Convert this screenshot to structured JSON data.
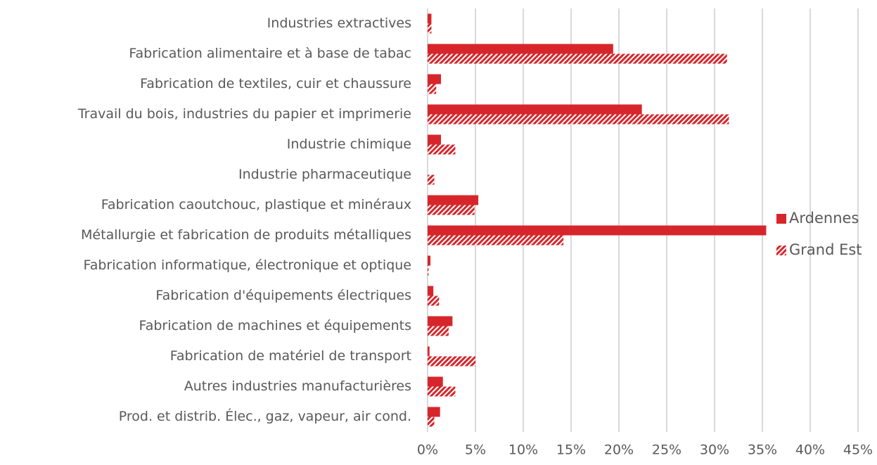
{
  "chart_data": {
    "type": "bar",
    "orientation": "horizontal",
    "categories": [
      "Industries extractives",
      "Fabrication alimentaire et à base de tabac",
      "Fabrication de textiles, cuir et chaussure",
      "Travail du bois, industries du papier et imprimerie",
      "Industrie chimique",
      "Industrie pharmaceutique",
      "Fabrication caoutchouc, plastique et minéraux",
      "Métallurgie et fabrication de produits métalliques",
      "Fabrication informatique, électronique et optique",
      "Fabrication d'équipements électriques",
      "Fabrication de machines et équipements",
      "Fabrication de matériel de transport",
      "Autres industries manufacturières",
      "Prod. et distrib. Élec., gaz, vapeur, air cond."
    ],
    "series": [
      {
        "name": "Ardennes",
        "color": "#d7262b",
        "pattern": "solid",
        "values": [
          0.4,
          19.4,
          1.4,
          22.4,
          1.4,
          0,
          5.3,
          35.4,
          0.3,
          0.6,
          2.6,
          0.2,
          1.6,
          1.3
        ]
      },
      {
        "name": "Grand Est",
        "color": "#d7262b",
        "pattern": "hatch",
        "values": [
          0.4,
          31.3,
          0.9,
          31.5,
          2.9,
          0.7,
          4.9,
          14.2,
          0.1,
          1.2,
          2.2,
          5.0,
          2.9,
          0.7
        ]
      }
    ],
    "xlim": [
      0,
      45
    ],
    "xticks": [
      {
        "value": 0,
        "label": "0%"
      },
      {
        "value": 5,
        "label": "5%"
      },
      {
        "value": 10,
        "label": "10%"
      },
      {
        "value": 15,
        "label": "15%"
      },
      {
        "value": 20,
        "label": "20%"
      },
      {
        "value": 25,
        "label": "25%"
      },
      {
        "value": 30,
        "label": "30%"
      },
      {
        "value": 35,
        "label": "35%"
      },
      {
        "value": 40,
        "label": "40%"
      },
      {
        "value": 45,
        "label": "45%"
      }
    ],
    "grid": true,
    "legend": "right"
  }
}
